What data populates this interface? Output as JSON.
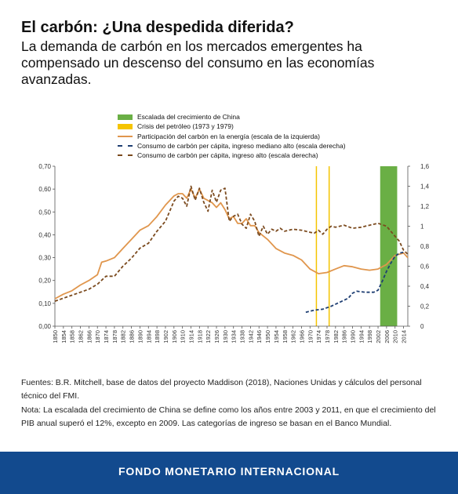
{
  "header": {
    "title": "El carbón: ¿Una despedida diferida?",
    "subtitle": "La demanda de carbón en los mercados emergentes ha compensado un descenso del consumo en las economías avanzadas."
  },
  "chart_data": {
    "type": "line",
    "title": "",
    "xlabel": "",
    "ylabel_left": "",
    "ylabel_right": "",
    "x_ticks": [
      "1850",
      "1854",
      "1858",
      "1862",
      "1866",
      "1870",
      "1874",
      "1878",
      "1882",
      "1886",
      "1890",
      "1894",
      "1898",
      "1902",
      "1906",
      "1910",
      "1914",
      "1918",
      "1922",
      "1926",
      "1930",
      "1934",
      "1938",
      "1942",
      "1946",
      "1950",
      "1954",
      "1958",
      "1962",
      "1966",
      "1970",
      "1974",
      "1978",
      "1982",
      "1986",
      "1990",
      "1994",
      "1998",
      "2002",
      "2006",
      "2010",
      "2014"
    ],
    "xlim": [
      1850,
      2016
    ],
    "ylim_left": [
      0,
      0.7
    ],
    "left_ticks": [
      "0,00",
      "0,10",
      "0,20",
      "0,30",
      "0,40",
      "0,50",
      "0,60",
      "0,70"
    ],
    "ylim_right": [
      0,
      1.6
    ],
    "right_ticks": [
      "0",
      "0,2",
      "0,4",
      "0,6",
      "0,8",
      "1",
      "1,2",
      "1,4",
      "1,6"
    ],
    "grid": false,
    "legend_position": "top",
    "shaded_regions": [
      {
        "name": "Escalada del crecimiento de China",
        "color": "#6aaf45",
        "x_start": 2003,
        "x_end": 2011
      }
    ],
    "vertical_markers": [
      {
        "name": "Crisis del petróleo (1973 y 1979)",
        "color": "#f5c400",
        "x": [
          1973,
          1979
        ]
      }
    ],
    "series": [
      {
        "name": "Participación del carbón en la energía (escala de la izquierda)",
        "axis": "left",
        "color": "#e0964d",
        "style": "solid",
        "points": [
          [
            1850,
            0.12
          ],
          [
            1854,
            0.14
          ],
          [
            1858,
            0.155
          ],
          [
            1862,
            0.18
          ],
          [
            1866,
            0.2
          ],
          [
            1870,
            0.225
          ],
          [
            1872,
            0.28
          ],
          [
            1874,
            0.285
          ],
          [
            1878,
            0.3
          ],
          [
            1882,
            0.34
          ],
          [
            1886,
            0.38
          ],
          [
            1890,
            0.42
          ],
          [
            1894,
            0.44
          ],
          [
            1898,
            0.48
          ],
          [
            1902,
            0.53
          ],
          [
            1904,
            0.55
          ],
          [
            1906,
            0.57
          ],
          [
            1908,
            0.58
          ],
          [
            1910,
            0.58
          ],
          [
            1912,
            0.56
          ],
          [
            1914,
            0.6
          ],
          [
            1916,
            0.56
          ],
          [
            1918,
            0.6
          ],
          [
            1920,
            0.56
          ],
          [
            1922,
            0.55
          ],
          [
            1924,
            0.54
          ],
          [
            1926,
            0.52
          ],
          [
            1928,
            0.54
          ],
          [
            1930,
            0.51
          ],
          [
            1932,
            0.47
          ],
          [
            1934,
            0.48
          ],
          [
            1936,
            0.45
          ],
          [
            1938,
            0.45
          ],
          [
            1940,
            0.47
          ],
          [
            1942,
            0.44
          ],
          [
            1944,
            0.44
          ],
          [
            1946,
            0.41
          ],
          [
            1950,
            0.38
          ],
          [
            1954,
            0.34
          ],
          [
            1958,
            0.32
          ],
          [
            1962,
            0.31
          ],
          [
            1966,
            0.29
          ],
          [
            1970,
            0.25
          ],
          [
            1974,
            0.23
          ],
          [
            1978,
            0.235
          ],
          [
            1982,
            0.25
          ],
          [
            1986,
            0.265
          ],
          [
            1990,
            0.26
          ],
          [
            1994,
            0.25
          ],
          [
            1998,
            0.245
          ],
          [
            2002,
            0.25
          ],
          [
            2006,
            0.27
          ],
          [
            2010,
            0.31
          ],
          [
            2014,
            0.32
          ],
          [
            2016,
            0.3
          ]
        ]
      },
      {
        "name": "Consumo de carbón per cápita, ingreso mediano alto (escala derecha)",
        "axis": "right",
        "color": "#1f3f73",
        "style": "dashed",
        "points": [
          [
            1968,
            0.14
          ],
          [
            1972,
            0.16
          ],
          [
            1976,
            0.17
          ],
          [
            1980,
            0.2
          ],
          [
            1984,
            0.24
          ],
          [
            1988,
            0.28
          ],
          [
            1990,
            0.33
          ],
          [
            1992,
            0.35
          ],
          [
            1996,
            0.34
          ],
          [
            2000,
            0.34
          ],
          [
            2002,
            0.36
          ],
          [
            2004,
            0.45
          ],
          [
            2006,
            0.55
          ],
          [
            2008,
            0.63
          ],
          [
            2010,
            0.7
          ],
          [
            2012,
            0.73
          ],
          [
            2014,
            0.74
          ]
        ]
      },
      {
        "name": "Consumo de carbón per cápita, ingreso alto (escala derecha)",
        "axis": "right",
        "color": "#7b4a1e",
        "style": "dashed",
        "points": [
          [
            1850,
            0.25
          ],
          [
            1854,
            0.28
          ],
          [
            1858,
            0.31
          ],
          [
            1862,
            0.34
          ],
          [
            1866,
            0.37
          ],
          [
            1870,
            0.42
          ],
          [
            1874,
            0.5
          ],
          [
            1878,
            0.5
          ],
          [
            1882,
            0.6
          ],
          [
            1886,
            0.68
          ],
          [
            1890,
            0.78
          ],
          [
            1894,
            0.83
          ],
          [
            1898,
            0.95
          ],
          [
            1902,
            1.05
          ],
          [
            1904,
            1.15
          ],
          [
            1906,
            1.25
          ],
          [
            1908,
            1.3
          ],
          [
            1910,
            1.28
          ],
          [
            1912,
            1.2
          ],
          [
            1914,
            1.4
          ],
          [
            1916,
            1.26
          ],
          [
            1918,
            1.38
          ],
          [
            1920,
            1.24
          ],
          [
            1922,
            1.15
          ],
          [
            1924,
            1.36
          ],
          [
            1926,
            1.24
          ],
          [
            1928,
            1.36
          ],
          [
            1930,
            1.38
          ],
          [
            1932,
            1.05
          ],
          [
            1934,
            1.1
          ],
          [
            1936,
            1.12
          ],
          [
            1938,
            1.02
          ],
          [
            1940,
            0.98
          ],
          [
            1942,
            1.12
          ],
          [
            1944,
            1.05
          ],
          [
            1946,
            0.9
          ],
          [
            1948,
            1.0
          ],
          [
            1950,
            0.92
          ],
          [
            1952,
            0.97
          ],
          [
            1954,
            0.95
          ],
          [
            1956,
            0.98
          ],
          [
            1958,
            0.95
          ],
          [
            1962,
            0.97
          ],
          [
            1966,
            0.96
          ],
          [
            1970,
            0.94
          ],
          [
            1972,
            0.93
          ],
          [
            1974,
            0.96
          ],
          [
            1976,
            0.92
          ],
          [
            1978,
            0.97
          ],
          [
            1980,
            1.0
          ],
          [
            1982,
            0.99
          ],
          [
            1986,
            1.01
          ],
          [
            1990,
            0.98
          ],
          [
            1994,
            0.99
          ],
          [
            1998,
            1.01
          ],
          [
            2002,
            1.03
          ],
          [
            2006,
            1.0
          ],
          [
            2008,
            0.95
          ],
          [
            2010,
            0.9
          ],
          [
            2012,
            0.85
          ],
          [
            2014,
            0.76
          ],
          [
            2016,
            0.72
          ]
        ]
      }
    ]
  },
  "notes": {
    "sources": "Fuentes: B.R. Mitchell, base de datos del proyecto Maddison (2018), Naciones Unidas y cálculos del personal técnico del FMI.",
    "note": "Nota: La escalada del crecimiento de China se define como los años entre 2003 y 2011, en que el crecimiento del PIB anual superó el 12%, excepto en 2009. Las categorías de ingreso se basan en el Banco Mundial."
  },
  "footer": {
    "org": "FONDO MONETARIO INTERNACIONAL"
  }
}
